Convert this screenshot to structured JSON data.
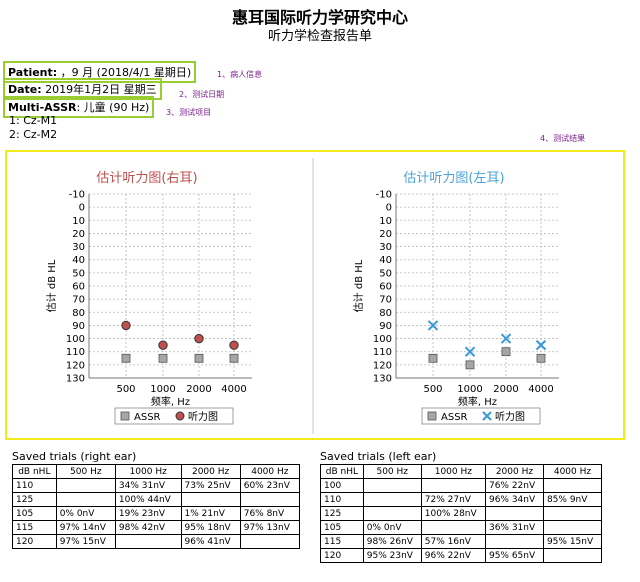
{
  "header": {
    "title": "惠耳国际听力学研究中心",
    "subtitle": "听力学检查报告单"
  },
  "info": {
    "patient_label": "Patient:",
    "patient_value": "，9 月 (2018/4/1 星期日)",
    "date_label": "Date:",
    "date_value": "2019年1月2日 星期三",
    "assr_label": "Multi-ASSR",
    "assr_value": ": 儿童 (90 Hz)",
    "channels": [
      "1: Cz-M1",
      "2: Cz-M2"
    ]
  },
  "annotations": {
    "a1": "1、病人信息",
    "a2": "2、测试日期",
    "a3": "3、测试项目",
    "a4": "4、测试结果"
  },
  "colors": {
    "right_title": "#c0504d",
    "left_title": "#4aa3d8",
    "right_marker": "#c0504d",
    "left_marker": "#3a9ad9",
    "assr_marker": "#a6a6a6",
    "highlight_green": "#9acd32",
    "highlight_yellow": "#f2ea1a"
  },
  "chart_data": [
    {
      "type": "scatter",
      "title": "估计听力图(右耳)",
      "xlabel": "频率, Hz",
      "ylabel": "估计 dB HL",
      "categories": [
        "500",
        "1000",
        "2000",
        "4000"
      ],
      "yticks": [
        -10,
        0,
        10,
        20,
        30,
        40,
        50,
        60,
        70,
        80,
        90,
        100,
        110,
        120,
        130
      ],
      "ylim": [
        -10,
        130
      ],
      "y_inverted": true,
      "grid": true,
      "legend": "bottom",
      "series": [
        {
          "name": "ASSR",
          "marker": "square",
          "values": [
            115,
            115,
            115,
            115
          ]
        },
        {
          "name": "听力图",
          "marker": "circle",
          "values": [
            90,
            105,
            100,
            105
          ]
        }
      ]
    },
    {
      "type": "scatter",
      "title": "估计听力图(左耳)",
      "xlabel": "频率, Hz",
      "ylabel": "估计 dB HL",
      "categories": [
        "500",
        "1000",
        "2000",
        "4000"
      ],
      "yticks": [
        -10,
        0,
        10,
        20,
        30,
        40,
        50,
        60,
        70,
        80,
        90,
        100,
        110,
        120,
        130
      ],
      "ylim": [
        -10,
        130
      ],
      "y_inverted": true,
      "grid": true,
      "legend": "bottom",
      "series": [
        {
          "name": "ASSR",
          "marker": "square",
          "values": [
            115,
            120,
            110,
            115
          ]
        },
        {
          "name": "听力图",
          "marker": "x",
          "values": [
            90,
            110,
            100,
            105
          ]
        }
      ]
    }
  ],
  "trials": {
    "right": {
      "title": "Saved trials (right ear)",
      "headers": [
        "dB nHL",
        "500 Hz",
        "1000 Hz",
        "2000 Hz",
        "4000 Hz"
      ],
      "rows": [
        [
          "110",
          "",
          "34% 31nV",
          "73% 25nV",
          "60% 23nV"
        ],
        [
          "125",
          "",
          "100% 44nV",
          "",
          ""
        ],
        [
          "105",
          "0% 0nV",
          "19% 23nV",
          "1% 21nV",
          "76% 8nV"
        ],
        [
          "115",
          "97% 14nV",
          "98% 42nV",
          "95% 18nV",
          "97% 13nV"
        ],
        [
          "120",
          "97% 15nV",
          "",
          "96% 41nV",
          ""
        ]
      ]
    },
    "left": {
      "title": "Saved trials (left ear)",
      "headers": [
        "dB nHL",
        "500 Hz",
        "1000 Hz",
        "2000 Hz",
        "4000 Hz"
      ],
      "rows": [
        [
          "100",
          "",
          "",
          "76% 22nV",
          ""
        ],
        [
          "110",
          "",
          "72% 27nV",
          "96% 34nV",
          "85% 9nV"
        ],
        [
          "125",
          "",
          "100% 28nV",
          "",
          ""
        ],
        [
          "105",
          "0% 0nV",
          "",
          "36% 31nV",
          ""
        ],
        [
          "115",
          "98% 26nV",
          "57% 16nV",
          "",
          "95% 15nV"
        ],
        [
          "120",
          "95% 23nV",
          "96% 22nV",
          "95% 65nV",
          ""
        ]
      ]
    }
  }
}
